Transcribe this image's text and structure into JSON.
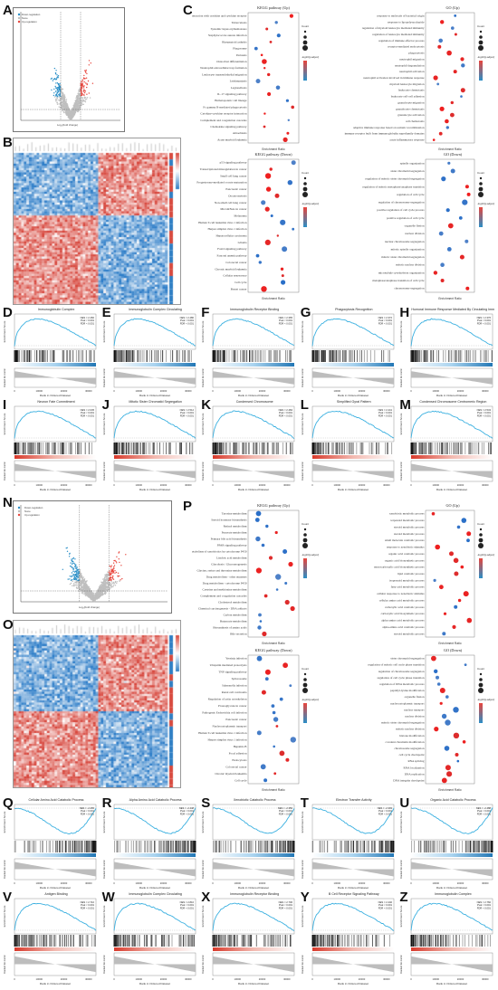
{
  "panels": {
    "A": {
      "label": "A",
      "legend": [
        "Down-regulation",
        "None",
        "Up-regulation"
      ],
      "xlabel": "Log₂(Fold change)",
      "ylabel": "-Log₁₀(P value)"
    },
    "B": {
      "label": "B"
    },
    "C": {
      "label": "C",
      "kegg_up": {
        "title": "KEGG pathway (Up)",
        "terms": [
          "Viral protein interaction with cytokine and cytokine receptor",
          "Tuberculosis",
          "Systemic lupus erythematosus",
          "Staphylococcus aureus infection",
          "Rheumatoid arthritis",
          "Phagosome",
          "Pertussis",
          "Osteoclast differentiation",
          "Neutrophil extracellular trap formation",
          "Leukocyte transendothelial migration",
          "Leishmaniasis",
          "Legionellosis",
          "IL-17 signaling pathway",
          "Hematopoietic cell lineage",
          "Fc gamma R-mediated phagocytosis",
          "Cytokine-cytokine receptor interaction",
          "Complement and coagulation cascades",
          "Chemokine signaling pathway",
          "Amoebiasis",
          "Acute myeloid leukemia"
        ],
        "xlabel": "Enrichment Ratio"
      },
      "go_up": {
        "title": "GO (Up)",
        "terms": [
          "response to molecule of bacterial origin",
          "response to lipopolysaccharide",
          "regulation of myeloid leukocyte mediated immunity",
          "regulation of leukocyte mediated immunity",
          "regulation of immune effector process",
          "receptor-mediated endocytosis",
          "phagocytosis",
          "neutrophil migration",
          "neutrophil degranulation",
          "neutrophil activation",
          "neutrophil activation involved in immune response",
          "myeloid leukocyte migration",
          "leukocyte chemotaxis",
          "leukocyte cell-cell adhesion",
          "granulocyte migration",
          "granulocyte chemotaxis",
          "granulocyte activation",
          "cell chemotaxis",
          "adaptive immune response based on somatic recombination",
          "immune receptor built from immunoglobulin superfamily domains",
          "acute inflammatory response"
        ],
        "xlabel": "Enrichment Ratio"
      },
      "legend": {
        "count_title": "Count",
        "padj_title": "-log10(p.adjust)"
      }
    },
    "kegg_down": {
      "title": "KEGG pathway (Down)",
      "terms": [
        "p53 signaling pathway",
        "Transcriptional misregulation in cancer",
        "Small cell lung cancer",
        "Progesterone-mediated oocyte maturation",
        "Pancreatic cancer",
        "Oocyte meiosis",
        "Non-small cell lung cancer",
        "MicroRNAs in cancer",
        "Melanoma",
        "Human T-cell leukemia virus 1 infection",
        "Herpes simplex virus 1 infection",
        "Hepatocellular carcinoma",
        "Glioma",
        "FoxO signaling pathway",
        "Fanconi anemia pathway",
        "Colorectal cancer",
        "Chronic myeloid leukemia",
        "Cellular senescence",
        "Cell cycle",
        "Breast cancer"
      ],
      "xlabel": "Enrichment Ratio"
    },
    "go_down": {
      "title": "GO (Down)",
      "terms": [
        "spindle organization",
        "sister chromatid segregation",
        "regulation of mitotic sister chromatid segregation",
        "regulation of mitotic metaphase/anaphase transition",
        "regulation of cell cycle",
        "regulation of chromosome segregation",
        "positive regulation of cell cycle process",
        "positive regulation of cell cycle",
        "organelle fission",
        "nuclear division",
        "nuclear chromosome segregation",
        "mitotic spindle organization",
        "mitotic sister chromatid segregation",
        "mitotic nuclear division",
        "microtubule cytoskeleton organization",
        "metaphase/anaphase transition of cell cycle",
        "chromosome segregation"
      ],
      "xlabel": "Enrichment Ratio"
    },
    "gsea_row1": [
      {
        "label": "D",
        "title": "Immunoglobulin Complex",
        "stats": [
          "NES = 2.460",
          "Pval < 0.001",
          "FDR < 0.001"
        ]
      },
      {
        "label": "E",
        "title": "Immunoglobulin Complex Circulating",
        "stats": [
          "NES = 2.480",
          "Pval < 0.001",
          "FDR < 0.001"
        ]
      },
      {
        "label": "F",
        "title": "Immunoglobulin Receptor Binding",
        "stats": [
          "NES = 2.365",
          "Pval < 0.001",
          "FDR < 0.001"
        ]
      },
      {
        "label": "G",
        "title": "Phagocytosis Recognition",
        "stats": [
          "NES = 2.372",
          "Pval < 0.001",
          "FDR < 0.001"
        ]
      },
      {
        "label": "H",
        "title": "Humoral Immune Response Mediated By Circulating Immunoglobulin",
        "stats": [
          "NES = 2.376",
          "Pval < 0.001",
          "FDR < 0.001"
        ]
      }
    ],
    "gsea_row2": [
      {
        "label": "I",
        "title": "Neuron Fate Commitment",
        "stats": [
          "NES = 2.045",
          "Pval < 0.001",
          "FDR < 0.001"
        ]
      },
      {
        "label": "J",
        "title": "Mitotic Sister Chromatid Segregation",
        "stats": [
          "NES = 2.512",
          "Pval < 0.001",
          "FDR < 0.001"
        ]
      },
      {
        "label": "K",
        "title": "Condensed Chromosome",
        "stats": [
          "NES = 2.484",
          "Pval < 0.001",
          "FDR < 0.001"
        ]
      },
      {
        "label": "L",
        "title": "Simplified Gyral Pattern",
        "stats": [
          "NES = 2.441",
          "Pval < 0.001",
          "FDR < 0.001"
        ]
      },
      {
        "label": "M",
        "title": "Condensed Chromosome Centromeric Region",
        "stats": [
          "NES = 2.543",
          "Pval < 0.001",
          "FDR < 0.001"
        ]
      }
    ],
    "N": {
      "label": "N",
      "legend": [
        "Down-regulation",
        "None",
        "Up-regulation"
      ],
      "xlabel": "Log₂(Fold change)",
      "ylabel": "-Log₁₀(P value)"
    },
    "O": {
      "label": "O"
    },
    "P": {
      "label": "P",
      "kegg_up": {
        "title": "KEGG pathway (Up)",
        "terms": [
          "Tyrosine metabolism",
          "Steroid hormone biosynthesis",
          "Retinol metabolism",
          "Pyruvate metabolism",
          "Primary bile acid biosynthesis",
          "PPAR signaling pathway",
          "Metabolism of xenobiotics by cytochrome P450",
          "Linoleic acid metabolism",
          "Glycolysis / Gluconeogenesis",
          "Glycine, serine and threonine metabolism",
          "Drug metabolism - other enzymes",
          "Drug metabolism - cytochrome P450",
          "Cysteine and methionine metabolism",
          "Complement and coagulation cascades",
          "Cholesterol metabolism",
          "Chemical carcinogenesis - DNA adducts",
          "Carbon metabolism",
          "Butanoate metabolism",
          "Biosynthesis of amino acids",
          "Bile secretion"
        ],
        "xlabel": "Enrichment Ratio"
      },
      "go_up": {
        "title": "GO (Up)",
        "terms": [
          "xenobiotic metabolic process",
          "terpenoid metabolic process",
          "steroid metabolic process",
          "steroid metabolic process",
          "small molecule catabolic process",
          "response to xenobiotic stimulus",
          "organic acid catabolic process",
          "organic acid biosynthetic process",
          "monocarboxylic acid biosynthetic process",
          "lipid catabolic process",
          "isoprenoid metabolic process",
          "fatty acid metabolic process",
          "cellular response to xenobiotic stimulus",
          "cellular amino acid metabolic process",
          "carboxylic acid catabolic process",
          "carboxylic acid biosynthetic process",
          "alpha-amino acid metabolic process",
          "alpha-amino acid catabolic process",
          "steroid metabolic process"
        ],
        "xlabel": "Enrichment Ratio"
      },
      "legend": {
        "count_title": "Count",
        "padj_title": "-log10(p.adjust)"
      }
    },
    "p_kegg_down": {
      "title": "KEGG pathway (Down)",
      "terms": [
        "Yersinia infection",
        "Ubiquitin mediated proteolysis",
        "TNF signaling pathway",
        "Spliceosome",
        "Salmonella infection",
        "Renal cell carcinoma",
        "Regulation of actin cytoskeleton",
        "Proteoglycans in cancer",
        "Pathogenic Escherichia coli infection",
        "Pancreatic cancer",
        "Nucleocytoplasmic transport",
        "Human T-cell leukemia virus 1 infection",
        "Herpes simplex virus 1 infection",
        "Hepatitis B",
        "Focal adhesion",
        "Endocytosis",
        "Colorectal cancer",
        "Chronic myeloid leukemia",
        "Cell cycle"
      ],
      "xlabel": "Enrichment Ratio"
    },
    "p_go_down": {
      "title": "GO (Down)",
      "terms": [
        "sister chromatid segregation",
        "regulation of mitotic cell cycle phase transition",
        "regulation of chromosome segregation",
        "regulation of cell cycle phase transition",
        "regulation of DNA metabolic process",
        "peptidyl-lysine modification",
        "organelle fission",
        "nucleocytoplasmic transport",
        "nuclear transport",
        "nuclear division",
        "mitotic sister chromatid segregation",
        "mitotic nuclear division",
        "histone modification",
        "covalent chromatin modification",
        "chromosome segregation",
        "cell cycle checkpoint",
        "RNA splicing",
        "RNA localization",
        "DNA replication",
        "DNA integrity checkpoint"
      ],
      "xlabel": "Enrichment Ratio"
    },
    "gsea_row3": [
      {
        "label": "Q",
        "title": "Cellular Amino Acid Catabolic Process",
        "stats": [
          "NES = -2.265",
          "Pval < 0.001",
          "FDR < 0.001"
        ]
      },
      {
        "label": "R",
        "title": "Alpha Amino Acid Catabolic Process",
        "stats": [
          "NES = -2.448",
          "Pval < 0.001",
          "FDR < 0.001"
        ]
      },
      {
        "label": "S",
        "title": "Xenobiotic Catabolic Process",
        "stats": [
          "NES = -2.350",
          "Pval < 0.001",
          "FDR < 0.001"
        ]
      },
      {
        "label": "T",
        "title": "Electron Transfer Activity",
        "stats": [
          "NES = -2.393",
          "Pval < 0.001",
          "FDR < 0.001"
        ]
      },
      {
        "label": "U",
        "title": "Organic Acid Catabolic Process",
        "stats": [
          "NES = -2.488",
          "Pval < 0.001",
          "FDR < 0.001"
        ]
      }
    ],
    "gsea_row4": [
      {
        "label": "V",
        "title": "Antigen Binding",
        "stats": [
          "NES = 2.710",
          "Pval < 0.001",
          "FDR < 0.001"
        ]
      },
      {
        "label": "W",
        "title": "Immunoglobulin Complex Circulating",
        "stats": [
          "NES = 2.810",
          "Pval < 0.001",
          "FDR < 0.001"
        ]
      },
      {
        "label": "X",
        "title": "Immunoglobulin Receptor Binding",
        "stats": [
          "NES = 2.706",
          "Pval < 0.001",
          "FDR < 0.001"
        ]
      },
      {
        "label": "Y",
        "title": "B Cell Receptor Signaling Pathway",
        "stats": [
          "NES = 2.440",
          "Pval < 0.001",
          "FDR < 0.001"
        ]
      },
      {
        "label": "Z",
        "title": "Immunoglobulin Complex",
        "stats": [
          "NES = 2.760",
          "Pval < 0.001",
          "FDR < 0.001"
        ]
      }
    ],
    "gsea_axis": {
      "ylabel_top": "Enrichment Score",
      "ylabel_bottom": "Ranked list metric",
      "xlabel": "Rank in Ordered Dataset",
      "xticks": [
        "0",
        "10000",
        "20000",
        "30000"
      ]
    }
  },
  "colors": {
    "up": "#e8453c",
    "down": "#2a8fc7",
    "none": "#bfbfbf",
    "curve": "#3bb0e0",
    "heat_red": "#d84a3e",
    "heat_blue": "#2f7fc4"
  }
}
